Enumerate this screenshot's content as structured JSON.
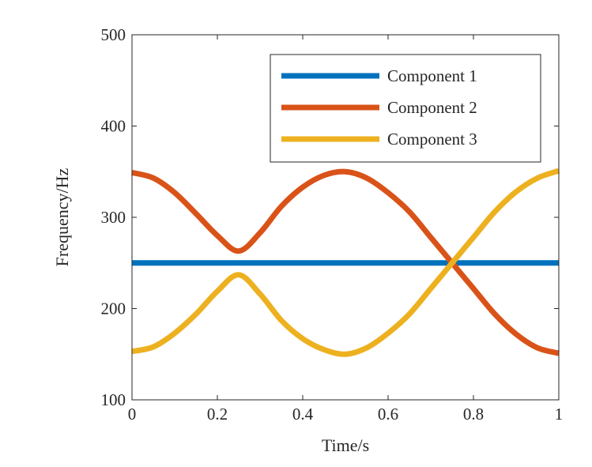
{
  "chart_data": {
    "type": "line",
    "title": "",
    "xlabel": "Time/s",
    "ylabel": "Frequency/Hz",
    "xlim": [
      0,
      1
    ],
    "ylim": [
      100,
      500
    ],
    "xticks": [
      0,
      0.2,
      0.4,
      0.6,
      0.8,
      1
    ],
    "xtick_labels": [
      "0",
      "0.2",
      "0.4",
      "0.6",
      "0.8",
      "1"
    ],
    "yticks": [
      100,
      200,
      300,
      400,
      500
    ],
    "ytick_labels": [
      "100",
      "200",
      "300",
      "400",
      "500"
    ],
    "grid": false,
    "box": true,
    "legend_position": "top-right",
    "x": [
      0,
      0.05,
      0.1,
      0.15,
      0.2,
      0.25,
      0.3,
      0.35,
      0.4,
      0.45,
      0.5,
      0.55,
      0.6,
      0.65,
      0.7,
      0.75,
      0.8,
      0.85,
      0.9,
      0.95,
      1
    ],
    "series": [
      {
        "name": "Component 1",
        "color": "#0072BD",
        "values": [
          250,
          250,
          250,
          250,
          250,
          250,
          250,
          250,
          250,
          250,
          250,
          250,
          250,
          250,
          250,
          250,
          250,
          250,
          250,
          250,
          250
        ]
      },
      {
        "name": "Component 2",
        "color": "#D95319",
        "values": [
          349,
          343,
          327,
          304,
          280,
          263,
          283,
          312,
          333,
          346,
          350,
          343,
          327,
          306,
          278,
          250,
          222,
          194,
          172,
          157,
          151
        ]
      },
      {
        "name": "Component 3",
        "color": "#EDB120",
        "values": [
          153,
          158,
          173,
          194,
          219,
          237,
          216,
          187,
          167,
          155,
          150,
          157,
          173,
          194,
          222,
          250,
          278,
          306,
          328,
          343,
          351
        ]
      }
    ]
  }
}
